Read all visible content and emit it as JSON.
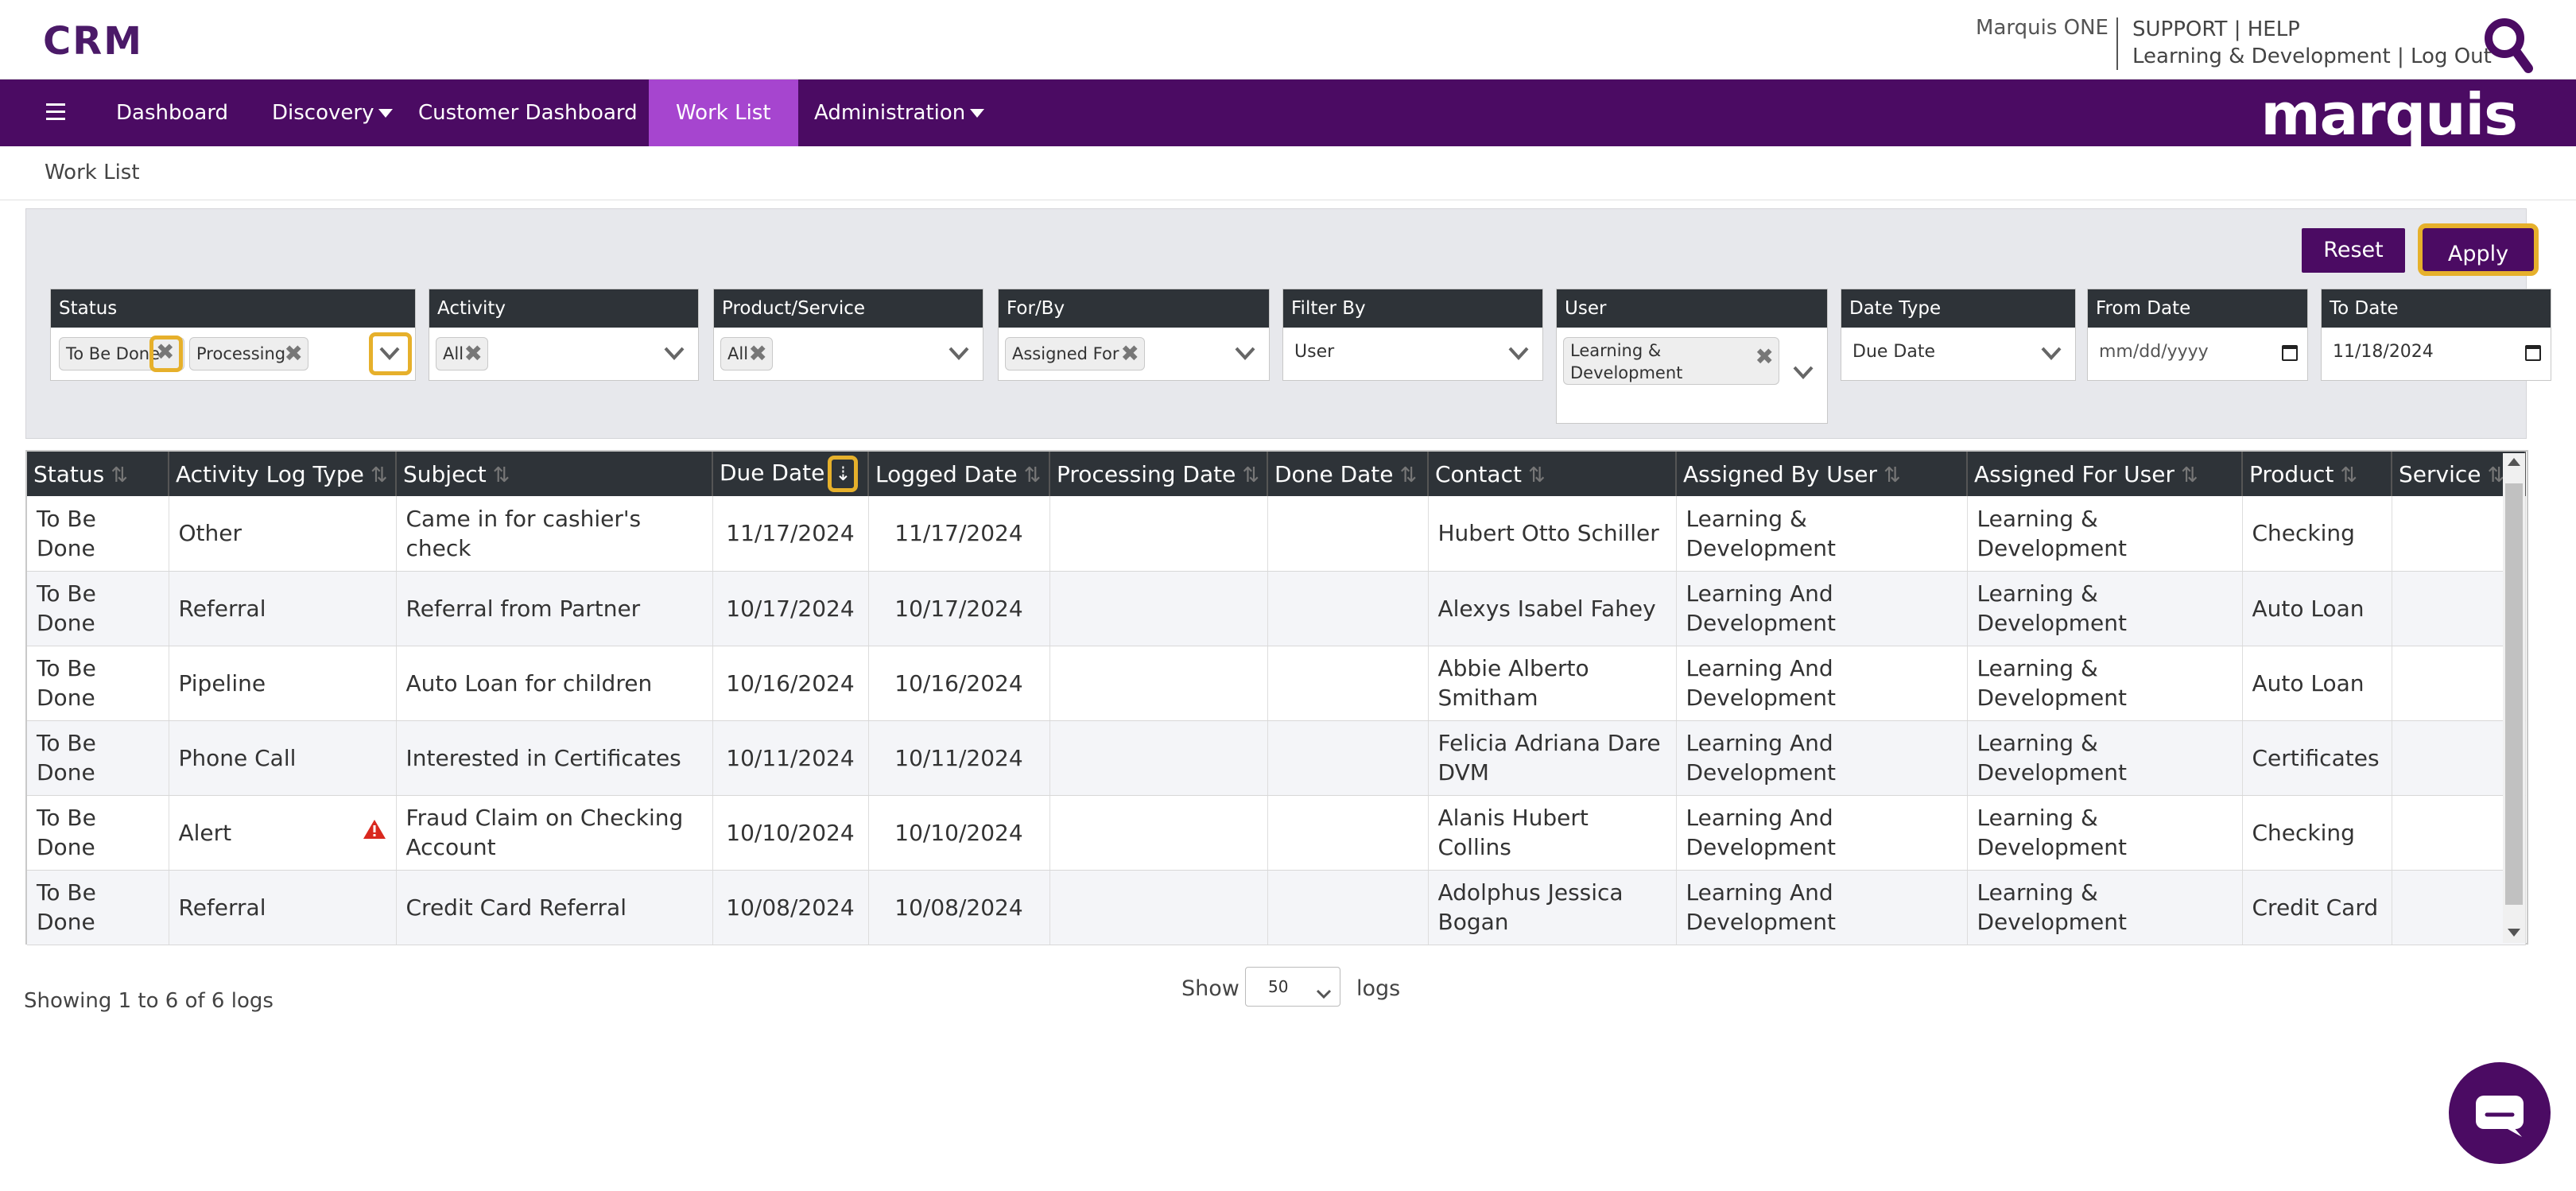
{
  "header": {
    "app_name": "CRM",
    "org_name": "Marquis ONE",
    "support_label": "SUPPORT",
    "help_label": "HELP",
    "user_label": "Learning & Development",
    "logout_label": "Log Out",
    "separator": "|"
  },
  "nav": {
    "items": [
      {
        "label": "Dashboard"
      },
      {
        "label": "Discovery"
      },
      {
        "label": "Customer Dashboard"
      },
      {
        "label": "Work List"
      },
      {
        "label": "Administration"
      }
    ],
    "brand": "marquis"
  },
  "breadcrumb": "Work List",
  "filters": {
    "reset_label": "Reset",
    "apply_label": "Apply",
    "status": {
      "label": "Status",
      "chips": [
        "To Be Done",
        "Processing"
      ]
    },
    "activity": {
      "label": "Activity",
      "chips": [
        "All"
      ]
    },
    "product_service": {
      "label": "Product/Service",
      "chips": [
        "All"
      ]
    },
    "for_by": {
      "label": "For/By",
      "chips": [
        "Assigned For"
      ]
    },
    "filter_by": {
      "label": "Filter By",
      "value": "User"
    },
    "user": {
      "label": "User",
      "chips": [
        "Learning & Development"
      ]
    },
    "date_type": {
      "label": "Date Type",
      "value": "Due Date"
    },
    "from_date": {
      "label": "From Date",
      "placeholder": "mm/dd/yyyy"
    },
    "to_date": {
      "label": "To Date",
      "value": "11/18/2024"
    }
  },
  "table": {
    "columns": [
      "Status",
      "Activity Log Type",
      "Subject",
      "Due Date",
      "Logged Date",
      "Processing Date",
      "Done Date",
      "Contact",
      "Assigned By User",
      "Assigned For User",
      "Product",
      "Service"
    ],
    "rows": [
      {
        "status": "To Be Done",
        "type": "Other",
        "subject": "Came in for cashier's check",
        "due": "11/17/2024",
        "logged": "11/17/2024",
        "processing": "",
        "done": "",
        "contact": "Hubert Otto Schiller",
        "by": "Learning & Development",
        "for": "Learning & Development",
        "product": "Checking",
        "service": "",
        "alert": false
      },
      {
        "status": "To Be Done",
        "type": "Referral",
        "subject": "Referral from Partner",
        "due": "10/17/2024",
        "logged": "10/17/2024",
        "processing": "",
        "done": "",
        "contact": "Alexys Isabel Fahey",
        "by": "Learning And Development",
        "for": "Learning & Development",
        "product": "Auto Loan",
        "service": "",
        "alert": false
      },
      {
        "status": "To Be Done",
        "type": "Pipeline",
        "subject": "Auto Loan for children",
        "due": "10/16/2024",
        "logged": "10/16/2024",
        "processing": "",
        "done": "",
        "contact": "Abbie Alberto Smitham",
        "by": "Learning And Development",
        "for": "Learning & Development",
        "product": "Auto Loan",
        "service": "",
        "alert": false
      },
      {
        "status": "To Be Done",
        "type": "Phone Call",
        "subject": "Interested in Certificates",
        "due": "10/11/2024",
        "logged": "10/11/2024",
        "processing": "",
        "done": "",
        "contact": "Felicia Adriana Dare DVM",
        "by": "Learning And Development",
        "for": "Learning & Development",
        "product": "Certificates",
        "service": "",
        "alert": false
      },
      {
        "status": "To Be Done",
        "type": "Alert",
        "subject": "Fraud Claim on Checking Account",
        "due": "10/10/2024",
        "logged": "10/10/2024",
        "processing": "",
        "done": "",
        "contact": "Alanis Hubert Collins",
        "by": "Learning And Development",
        "for": "Learning & Development",
        "product": "Checking",
        "service": "",
        "alert": true
      },
      {
        "status": "To Be Done",
        "type": "Referral",
        "subject": "Credit Card Referral",
        "due": "10/08/2024",
        "logged": "10/08/2024",
        "processing": "",
        "done": "",
        "contact": "Adolphus Jessica Bogan",
        "by": "Learning And Development",
        "for": "Learning & Development",
        "product": "Credit Card",
        "service": "",
        "alert": false
      }
    ]
  },
  "footer": {
    "showing": "Showing 1 to 6 of 6 logs",
    "show_label": "Show",
    "page_size": "50",
    "logs_label": "logs"
  },
  "colors": {
    "brand_purple": "#4b0b63",
    "active_tab": "#a645cf",
    "highlight": "#e6b02b",
    "alert_red": "#d9281e"
  },
  "icons": [
    "search-icon",
    "menu-icon",
    "chevron-down-icon",
    "close-icon",
    "sort-icon",
    "sort-desc-icon",
    "warning-icon",
    "chat-icon"
  ]
}
